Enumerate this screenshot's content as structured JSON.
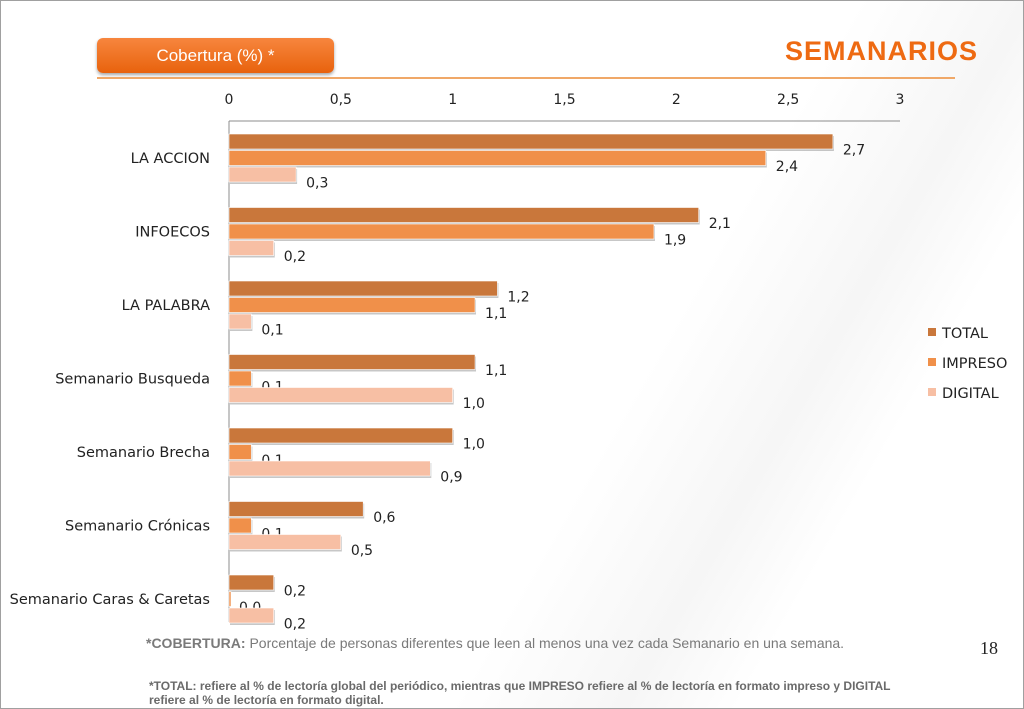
{
  "header": {
    "badge": "Cobertura (%) *",
    "title": "SEMANARIOS"
  },
  "chart_data": {
    "type": "bar",
    "orientation": "horizontal",
    "categories": [
      "LA ACCION",
      "INFOECOS",
      "LA PALABRA",
      "Semanario Busqueda",
      "Semanario Brecha",
      "Semanario Crónicas",
      "Semanario Caras & Caretas"
    ],
    "series": [
      {
        "name": "TOTAL",
        "values": [
          2.7,
          2.1,
          1.2,
          1.1,
          1.0,
          0.6,
          0.2
        ],
        "labels": [
          "2,7",
          "2,1",
          "1,2",
          "1,1",
          "1,0",
          "0,6",
          "0,2"
        ],
        "color": "#c9773b"
      },
      {
        "name": "IMPRESO",
        "values": [
          2.4,
          1.9,
          1.1,
          0.1,
          0.1,
          0.1,
          0.0
        ],
        "labels": [
          "2,4",
          "1,9",
          "1,1",
          "0,1",
          "0,1",
          "0,1",
          "0,0"
        ],
        "color": "#f0904a"
      },
      {
        "name": "DIGITAL",
        "values": [
          0.3,
          0.2,
          0.1,
          1.0,
          0.9,
          0.5,
          0.2
        ],
        "labels": [
          "0,3",
          "0,2",
          "0,1",
          "1,0",
          "0,9",
          "0,5",
          "0,2"
        ],
        "color": "#f7bfa4"
      }
    ],
    "xlim": [
      0,
      3
    ],
    "xticks": [
      0,
      0.5,
      1,
      1.5,
      2,
      2.5,
      3
    ],
    "xtick_labels": [
      "0",
      "0,5",
      "1",
      "1,5",
      "2",
      "2,5",
      "3"
    ],
    "axis_position": "top",
    "grid": false,
    "legend_position": "right"
  },
  "footnotes": {
    "cobertura_label": "*COBERTURA:",
    "cobertura_text": " Porcentaje de personas diferentes que leen al menos una vez cada Semanario en una semana.",
    "total_note": "*TOTAL: refiere al % de lectoría global del periódico, mientras que IMPRESO refiere al % de lectoría en formato impreso y DIGITAL refiere al % de lectoría en formato digital."
  },
  "page_number": "18"
}
